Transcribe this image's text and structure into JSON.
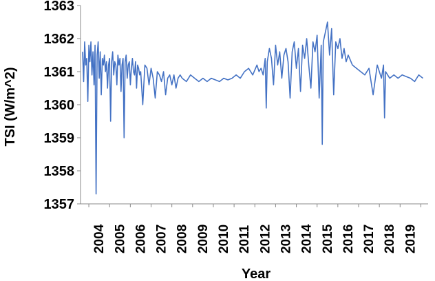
{
  "chart_data": {
    "type": "line",
    "title": "",
    "xlabel": "Year",
    "ylabel": "TSI (W/m^2)",
    "xlim": [
      2003.1,
      2019.85
    ],
    "ylim": [
      1357,
      1363
    ],
    "grid": false,
    "legend": "none",
    "line_color": "#4472C4",
    "axis_color": "#888888",
    "x_ticks": [
      2004,
      2005,
      2006,
      2007,
      2008,
      2009,
      2010,
      2011,
      2012,
      2013,
      2014,
      2015,
      2016,
      2017,
      2018,
      2019
    ],
    "x_tick_labels": [
      "2004",
      "2005",
      "2006",
      "2007",
      "2008",
      "2009",
      "2010",
      "2011",
      "2012",
      "2013",
      "2014",
      "2015",
      "2016",
      "2017",
      "2018",
      "2019"
    ],
    "y_ticks": [
      1357,
      1358,
      1359,
      1360,
      1361,
      1362,
      1363
    ],
    "y_tick_labels": [
      "1357",
      "1358",
      "1359",
      "1360",
      "1361",
      "1362",
      "1363"
    ],
    "series": [
      {
        "x": [
          2003.2,
          2003.25,
          2003.3,
          2003.35,
          2003.4,
          2003.45,
          2003.5,
          2003.55,
          2003.6,
          2003.65,
          2003.7,
          2003.75,
          2003.8,
          2003.85,
          2003.9,
          2003.95,
          2004.0,
          2004.05,
          2004.1,
          2004.15,
          2004.2,
          2004.25,
          2004.3,
          2004.35,
          2004.4,
          2004.45,
          2004.5,
          2004.55,
          2004.6,
          2004.65,
          2004.7,
          2004.75,
          2004.8,
          2004.85,
          2004.9,
          2004.95,
          2005.0,
          2005.05,
          2005.1,
          2005.15,
          2005.2,
          2005.25,
          2005.3,
          2005.35,
          2005.4,
          2005.45,
          2005.5,
          2005.55,
          2005.6,
          2005.65,
          2005.7,
          2005.75,
          2005.8,
          2005.85,
          2005.9,
          2005.95,
          2006.0,
          2006.1,
          2006.2,
          2006.3,
          2006.4,
          2006.5,
          2006.6,
          2006.7,
          2006.8,
          2006.9,
          2007.0,
          2007.1,
          2007.2,
          2007.3,
          2007.4,
          2007.5,
          2007.6,
          2007.7,
          2007.8,
          2007.9,
          2008.0,
          2008.2,
          2008.4,
          2008.6,
          2008.8,
          2009.0,
          2009.2,
          2009.4,
          2009.6,
          2009.8,
          2010.0,
          2010.2,
          2010.4,
          2010.6,
          2010.8,
          2011.0,
          2011.2,
          2011.4,
          2011.6,
          2011.7,
          2011.8,
          2011.9,
          2012.0,
          2012.05,
          2012.1,
          2012.2,
          2012.3,
          2012.4,
          2012.5,
          2012.6,
          2012.7,
          2012.8,
          2012.9,
          2013.0,
          2013.1,
          2013.2,
          2013.3,
          2013.4,
          2013.5,
          2013.6,
          2013.7,
          2013.8,
          2013.9,
          2014.0,
          2014.1,
          2014.2,
          2014.3,
          2014.4,
          2014.5,
          2014.6,
          2014.7,
          2014.75,
          2014.8,
          2014.9,
          2015.0,
          2015.1,
          2015.2,
          2015.3,
          2015.4,
          2015.5,
          2015.6,
          2015.7,
          2015.8,
          2015.9,
          2016.0,
          2016.2,
          2016.4,
          2016.6,
          2016.8,
          2017.0,
          2017.2,
          2017.4,
          2017.6,
          2017.7,
          2017.75,
          2017.8,
          2017.9,
          2018.0,
          2018.2,
          2018.4,
          2018.6,
          2018.8,
          2019.0,
          2019.2,
          2019.4,
          2019.6
        ],
        "y": [
          1361.6,
          1360.7,
          1361.9,
          1361.2,
          1361.4,
          1360.1,
          1361.8,
          1361.3,
          1361.9,
          1360.9,
          1361.6,
          1360.6,
          1361.8,
          1357.3,
          1361.5,
          1361.9,
          1360.8,
          1361.6,
          1360.3,
          1361.4,
          1361.2,
          1361.5,
          1361.0,
          1361.3,
          1360.5,
          1361.2,
          1361.4,
          1359.5,
          1361.3,
          1361.6,
          1360.9,
          1361.3,
          1361.2,
          1360.6,
          1361.5,
          1361.2,
          1361.4,
          1360.4,
          1361.2,
          1361.4,
          1359.0,
          1361.3,
          1361.5,
          1360.8,
          1361.2,
          1361.3,
          1360.6,
          1361.1,
          1361.4,
          1361.0,
          1360.9,
          1361.3,
          1360.5,
          1361.2,
          1361.1,
          1360.9,
          1361.0,
          1360.0,
          1361.2,
          1361.1,
          1360.6,
          1361.1,
          1360.8,
          1360.2,
          1361.0,
          1360.9,
          1360.7,
          1361.0,
          1360.3,
          1360.8,
          1360.9,
          1360.6,
          1360.9,
          1360.5,
          1360.8,
          1360.9,
          1360.8,
          1360.7,
          1360.9,
          1360.8,
          1360.7,
          1360.8,
          1360.7,
          1360.8,
          1360.75,
          1360.7,
          1360.8,
          1360.75,
          1360.8,
          1360.9,
          1360.8,
          1361.0,
          1361.1,
          1360.9,
          1361.2,
          1361.0,
          1361.1,
          1360.9,
          1361.4,
          1359.9,
          1361.3,
          1361.7,
          1361.4,
          1360.6,
          1361.8,
          1361.2,
          1361.6,
          1360.8,
          1361.5,
          1361.7,
          1361.3,
          1360.2,
          1361.6,
          1361.9,
          1361.1,
          1361.7,
          1360.4,
          1361.8,
          1361.4,
          1362.0,
          1361.2,
          1360.5,
          1361.9,
          1361.6,
          1362.1,
          1360.2,
          1361.8,
          1358.8,
          1361.9,
          1362.2,
          1362.5,
          1361.5,
          1362.3,
          1360.3,
          1361.9,
          1361.7,
          1362.0,
          1361.4,
          1361.7,
          1361.3,
          1361.5,
          1361.2,
          1361.1,
          1361.0,
          1360.9,
          1361.1,
          1360.3,
          1361.2,
          1360.8,
          1361.2,
          1359.6,
          1361.0,
          1360.9,
          1360.8,
          1360.9,
          1360.8,
          1360.9,
          1360.85,
          1360.8,
          1360.7,
          1360.9,
          1360.8
        ]
      }
    ]
  }
}
